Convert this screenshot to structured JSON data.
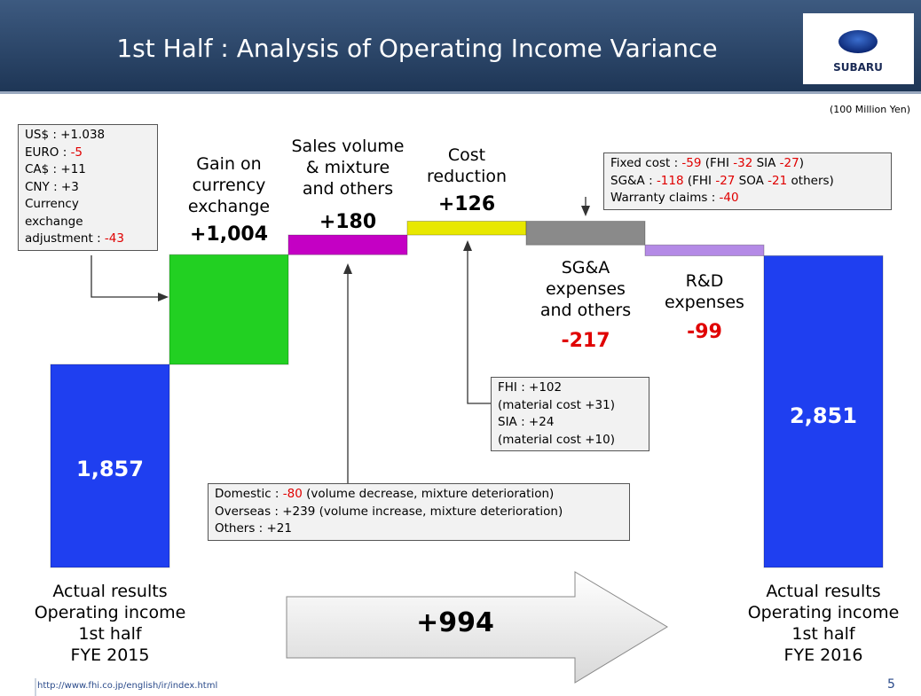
{
  "header": {
    "title": "1st Half : Analysis of Operating Income Variance",
    "logo": "SUBARU"
  },
  "chart_data": {
    "type": "waterfall",
    "unit": "(100 Million Yen)",
    "categories": [
      "Actual results\nOperating income\n1st half\nFYE 2015",
      "Gain on\ncurrency\nexchange",
      "Sales volume\n& mixture\nand others",
      "Cost\nreduction",
      "SG&A\nexpenses\nand others",
      "R&D\nexpenses",
      "Actual results\nOperating income\n1st half\nFYE 2016"
    ],
    "values": [
      1857,
      1004,
      180,
      126,
      -217,
      -99,
      2851
    ],
    "value_labels": [
      "1,857",
      "+1,004",
      "+180",
      "+126",
      "-217",
      "-99",
      "2,851"
    ],
    "kinds": [
      "total",
      "delta",
      "delta",
      "delta",
      "delta",
      "delta",
      "total"
    ],
    "colors": [
      "#1f3ff0",
      "#22d022",
      "#c400c4",
      "#e8e800",
      "#8a8a8a",
      "#b48ae6",
      "#1f3ff0"
    ],
    "change_label": "+994",
    "annotations": [
      {
        "lines": [
          [
            "US$ : +1.038"
          ],
          [
            "EURO : ",
            "-5"
          ],
          [
            "CA$ : +11"
          ],
          [
            "CNY : +3"
          ],
          [
            "Currency"
          ],
          [
            "exchange"
          ],
          [
            "adjustment : ",
            "-43"
          ]
        ]
      },
      {
        "lines": [
          [
            "Fixed cost : ",
            "-59",
            " (FHI ",
            "-32",
            " SIA ",
            "-27",
            ")"
          ],
          [
            "SG&A : ",
            "-118",
            " (FHI ",
            "-27",
            " SOA ",
            "-21",
            " others)"
          ],
          [
            "Warranty claims : ",
            "-40"
          ]
        ]
      },
      {
        "lines": [
          [
            "FHI : +102"
          ],
          [
            "(material cost +31)"
          ],
          [
            "SIA : +24"
          ],
          [
            "(material cost +10)"
          ]
        ]
      },
      {
        "lines": [
          [
            "Domestic : ",
            "-80",
            " (volume decrease, mixture deterioration)"
          ],
          [
            "Overseas : +239 (volume increase, mixture deterioration)"
          ],
          [
            "Others : +21"
          ]
        ]
      }
    ]
  },
  "footer": {
    "url": "http://www.fhi.co.jp/english/ir/index.html",
    "page": "5"
  }
}
